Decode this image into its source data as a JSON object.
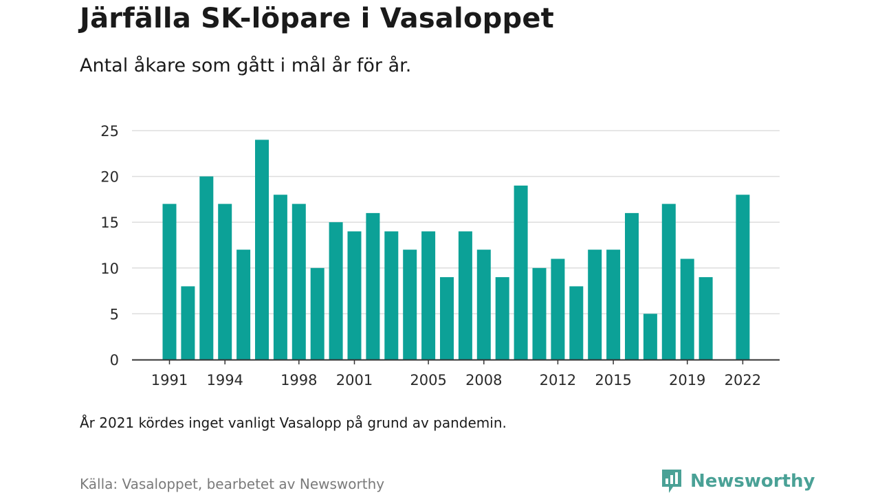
{
  "header": {
    "title": "Järfälla SK-löpare i Vasaloppet",
    "subtitle": "Antal åkare som gått i mål år för år."
  },
  "footer": {
    "note": "År 2021 kördes inget vanligt Vasalopp på grund av pandemin.",
    "source": "Källa: Vasaloppet, bearbetet av Newsworthy",
    "brand": "Newsworthy",
    "brand_icon": "newsworthy-logo-icon"
  },
  "colors": {
    "bar": "#0ca197",
    "grid": "#dddddd",
    "axis": "#333333",
    "brand": "#4aa196"
  },
  "chart_data": {
    "type": "bar",
    "title": "Järfälla SK-löpare i Vasaloppet",
    "subtitle": "Antal åkare som gått i mål år för år.",
    "xlabel": "",
    "ylabel": "",
    "categories": [
      1991,
      1992,
      1993,
      1994,
      1995,
      1996,
      1997,
      1998,
      1999,
      2000,
      2001,
      2002,
      2003,
      2004,
      2005,
      2006,
      2007,
      2008,
      2009,
      2010,
      2011,
      2012,
      2013,
      2014,
      2015,
      2016,
      2017,
      2018,
      2019,
      2020,
      2021,
      2022
    ],
    "values": [
      17,
      8,
      20,
      17,
      12,
      24,
      18,
      17,
      10,
      15,
      14,
      16,
      14,
      12,
      14,
      9,
      14,
      12,
      9,
      19,
      10,
      11,
      8,
      12,
      12,
      16,
      5,
      17,
      11,
      9,
      null,
      18
    ],
    "x_tick_labels": [
      "1991",
      "1994",
      "1998",
      "2001",
      "2005",
      "2008",
      "2012",
      "2015",
      "2019",
      "2022"
    ],
    "y_ticks": [
      0,
      5,
      10,
      15,
      20,
      25
    ],
    "ylim": [
      0,
      25
    ],
    "grid": true,
    "legend": "none"
  }
}
